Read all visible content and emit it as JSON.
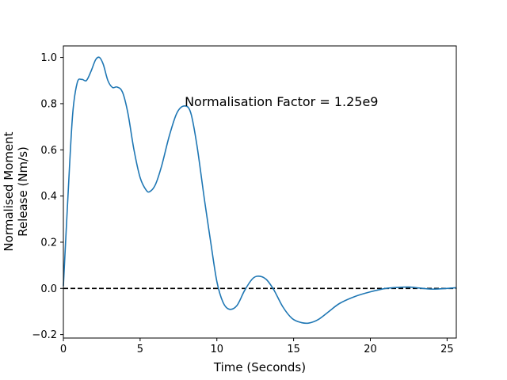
{
  "chart_data": {
    "type": "line",
    "title": "",
    "xlabel": "Time (Seconds)",
    "ylabel": "Normalised Moment Release (Nm/s)",
    "ylabel_lines": [
      "Normalised Moment",
      "Release (Nm/s)"
    ],
    "annotation": "Normalisation Factor = 1.25e9",
    "annotation_at": {
      "x": 7.9,
      "y": 0.81
    },
    "xlim": [
      0,
      25.6
    ],
    "ylim": [
      -0.215,
      1.05
    ],
    "x_ticks": [
      0,
      5,
      10,
      15,
      20,
      25
    ],
    "y_ticks": [
      -0.2,
      0.0,
      0.2,
      0.4,
      0.6,
      0.8,
      1.0
    ],
    "x_tick_labels": [
      "0",
      "5",
      "10",
      "15",
      "20",
      "25"
    ],
    "y_tick_labels": [
      "−0.2",
      "0.0",
      "0.2",
      "0.4",
      "0.6",
      "0.8",
      "1.0"
    ],
    "grid": false,
    "series": [
      {
        "color": "#1f77b4",
        "style": "solid",
        "x": [
          0,
          0.3,
          0.6,
          0.9,
          1.2,
          1.5,
          1.8,
          2.1,
          2.35,
          2.6,
          2.9,
          3.2,
          3.5,
          3.85,
          4.2,
          4.6,
          5.0,
          5.4,
          5.65,
          6.0,
          6.4,
          6.9,
          7.4,
          7.9,
          8.3,
          8.7,
          9.2,
          9.6,
          10.0,
          10.4,
          10.8,
          11.3,
          11.8,
          12.3,
          12.7,
          13.2,
          13.7,
          14.3,
          14.9,
          15.5,
          16.0,
          16.6,
          17.3,
          18.0,
          19.0,
          20.0,
          21.0,
          22.0,
          22.5,
          23.0,
          24.0,
          25.0,
          25.6
        ],
        "y": [
          0.01,
          0.4,
          0.75,
          0.89,
          0.905,
          0.9,
          0.94,
          0.99,
          1.0,
          0.97,
          0.9,
          0.87,
          0.872,
          0.85,
          0.76,
          0.6,
          0.48,
          0.425,
          0.42,
          0.45,
          0.53,
          0.66,
          0.76,
          0.79,
          0.76,
          0.62,
          0.38,
          0.2,
          0.03,
          -0.06,
          -0.09,
          -0.075,
          -0.01,
          0.04,
          0.053,
          0.04,
          -0.005,
          -0.08,
          -0.13,
          -0.148,
          -0.15,
          -0.135,
          -0.1,
          -0.065,
          -0.035,
          -0.015,
          0.0,
          0.005,
          0.006,
          0.003,
          -0.003,
          0.0,
          0.003
        ]
      },
      {
        "color": "#000000",
        "style": "dashed",
        "x": [
          0,
          25.6
        ],
        "y": [
          0,
          0
        ]
      }
    ]
  }
}
